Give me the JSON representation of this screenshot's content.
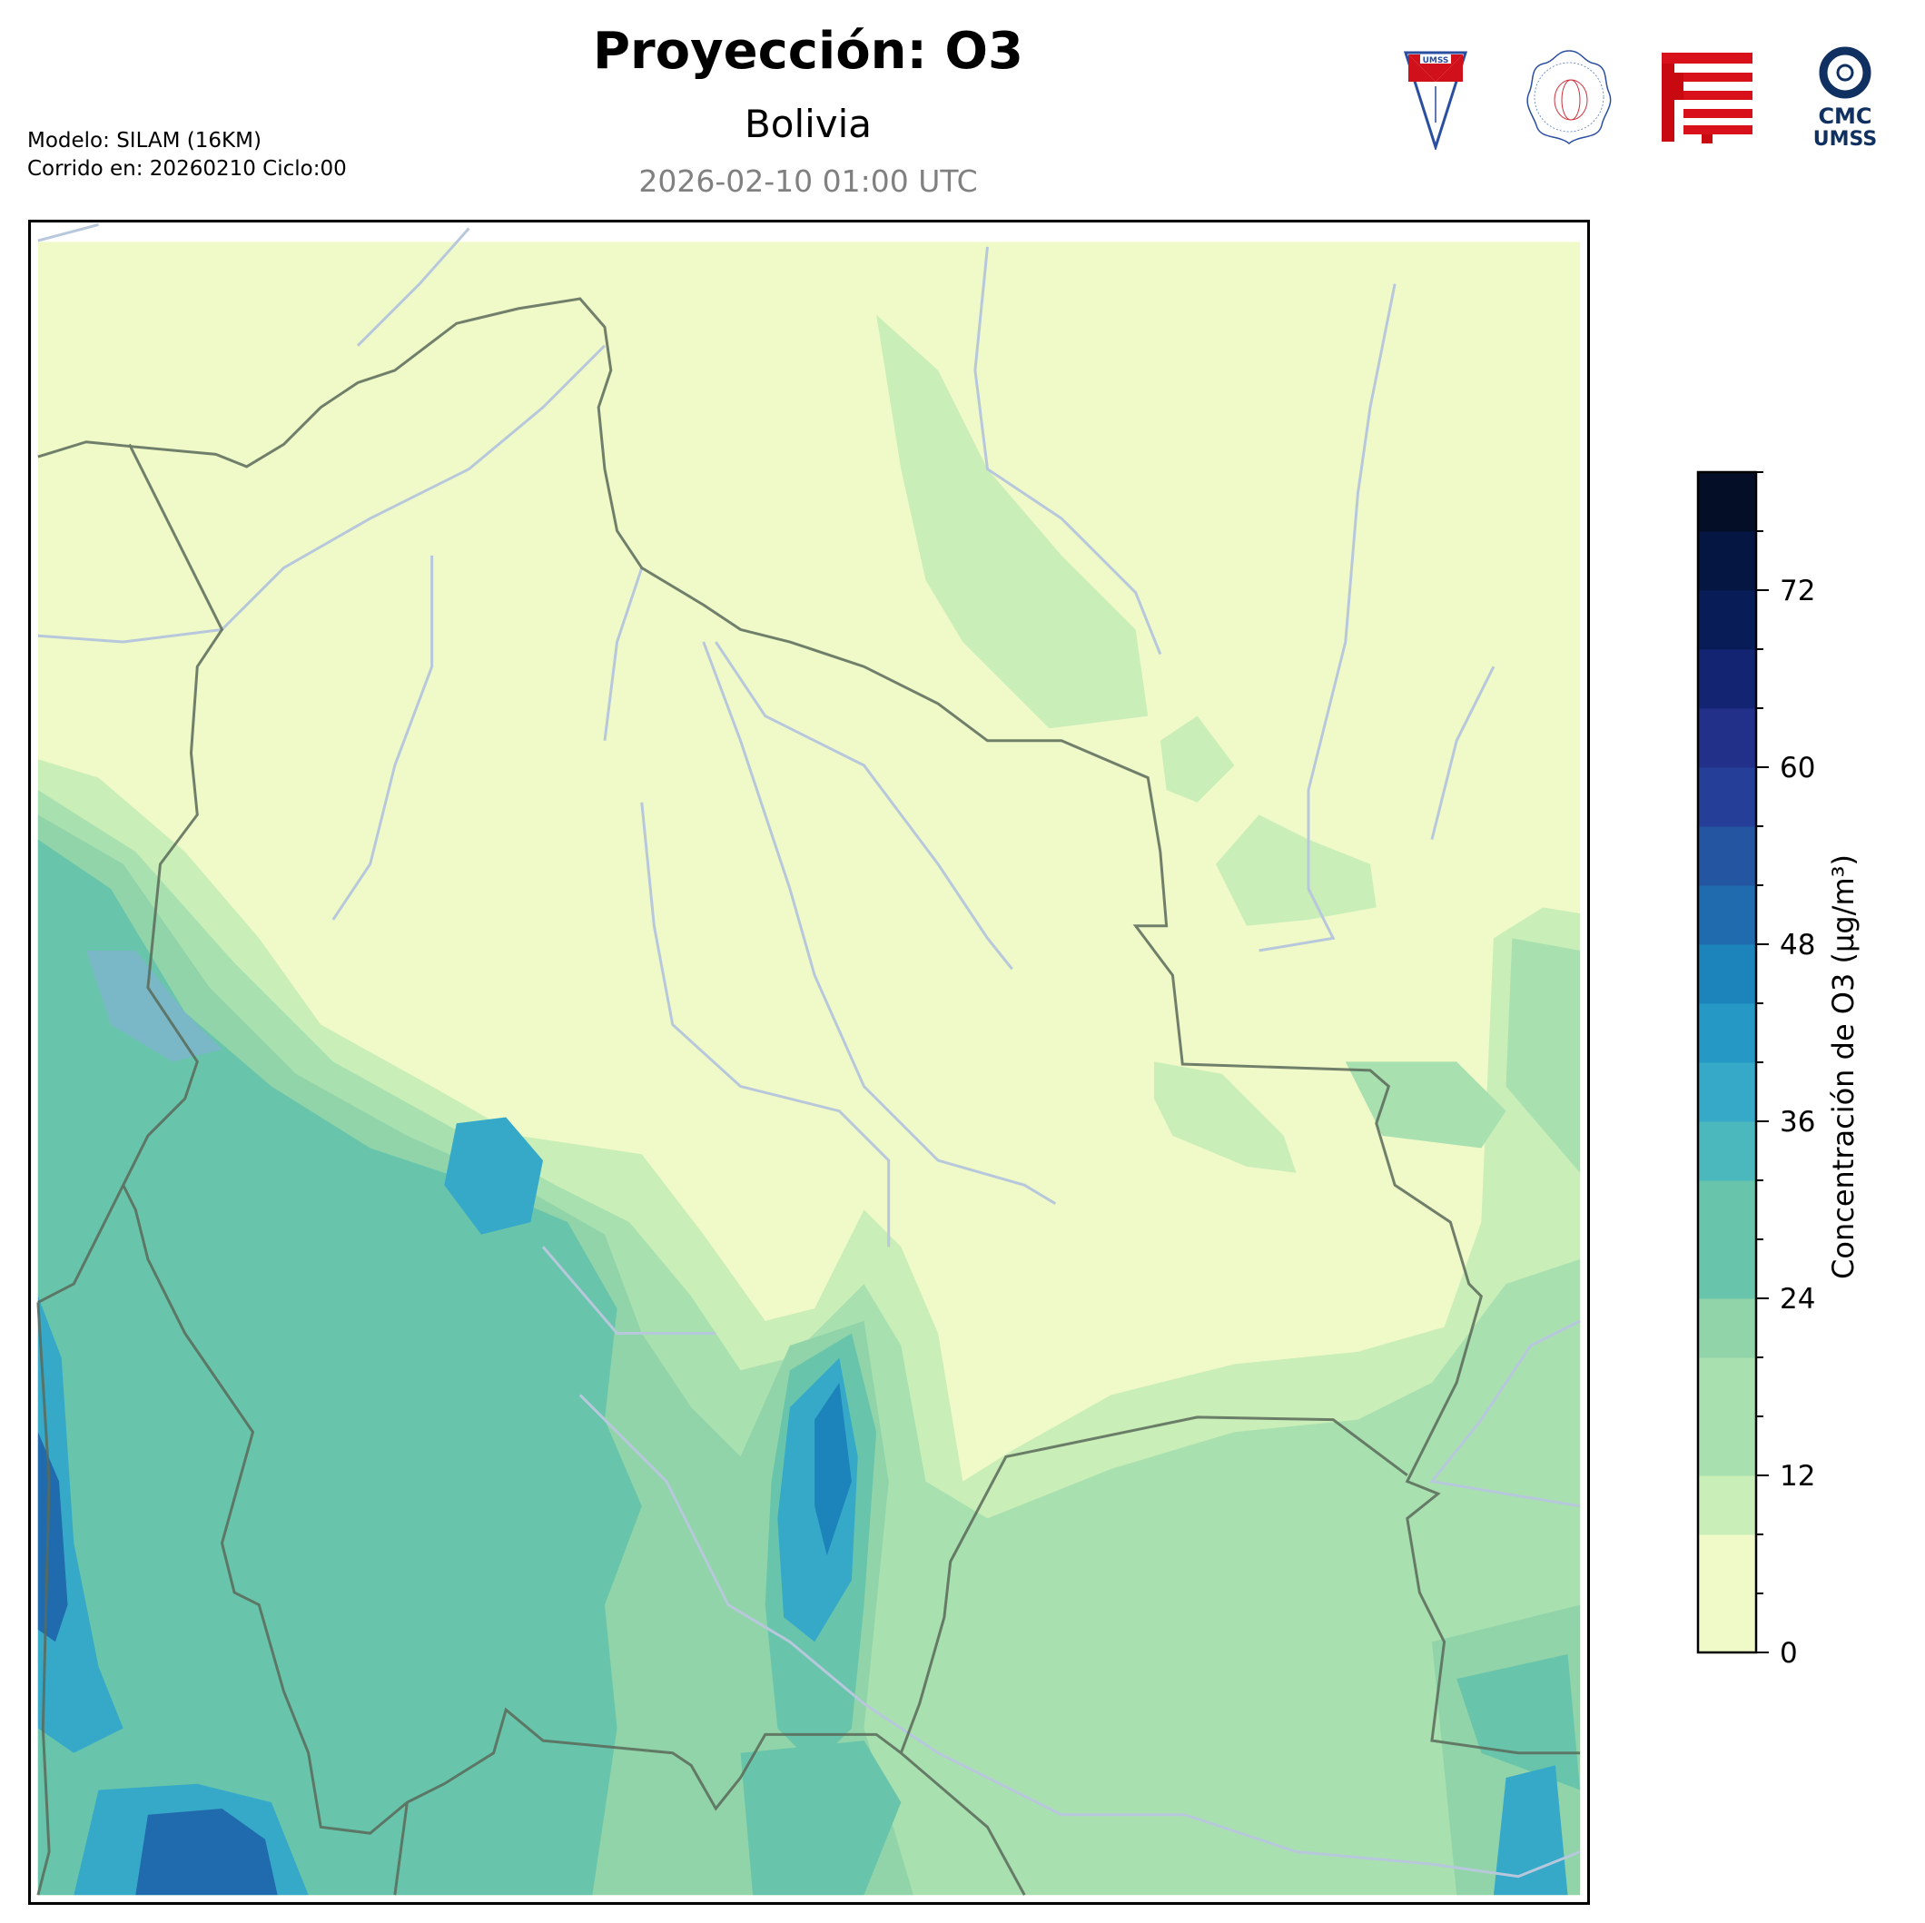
{
  "header": {
    "title": "Proyección: O3",
    "subtitle": "Bolivia",
    "datetime": "2026-02-10 01:00 UTC",
    "model": "Modelo: SILAM (16KM)",
    "run": "Corrido en: 20260210 Ciclo:00"
  },
  "logos": {
    "umss": "UMSS",
    "fisica": "DEPARTAMENTO DE FISICA",
    "fcyt": "FCyT",
    "cmc_line1": "CMC",
    "cmc_line2": "UMSS"
  },
  "chart_data": {
    "type": "heatmap",
    "subtype": "filled-contour map",
    "region": "Bolivia",
    "variable": "O3",
    "colorbar": {
      "label": "Concentración de O3 (µg/m³)",
      "levels": [
        0,
        4,
        8,
        12,
        16,
        20,
        24,
        28,
        32,
        36,
        40,
        44,
        48,
        52,
        56,
        60,
        64,
        68,
        72,
        76,
        80
      ],
      "colors": [
        "#f0f9c8",
        "#f0f9c8",
        "#c9eeb8",
        "#a8e0b0",
        "#a8e0b0",
        "#91d4a9",
        "#68c5ab",
        "#68c5ab",
        "#4ab8bd",
        "#37a9c8",
        "#2598c5",
        "#1d84bb",
        "#206bae",
        "#2355a0",
        "#253f98",
        "#22308a",
        "#132572",
        "#081d58",
        "#061642",
        "#040e26"
      ],
      "ticks": [
        0,
        12,
        24,
        36,
        48,
        60,
        72
      ],
      "range": [
        0,
        80
      ]
    },
    "observations": {
      "max_areas": "southwest Andes / Chile border and south-central Bolivia (~40-56 µg/m³)",
      "min_areas": "north and east lowlands (0-8 µg/m³)"
    }
  },
  "colors": {
    "border": "#5a6a5a",
    "river": "#b8c8dc",
    "frame": "#000000"
  }
}
